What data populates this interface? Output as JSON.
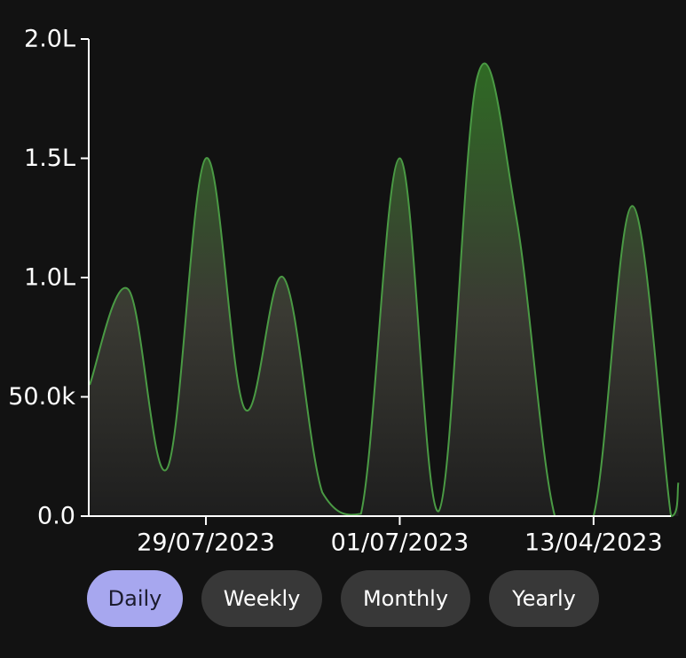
{
  "chart_data": {
    "type": "area",
    "y_ticks": [
      "0.0",
      "50.0k",
      "1.0L",
      "1.5L",
      "2.0L"
    ],
    "y_tick_values": [
      0,
      50000,
      100000,
      150000,
      200000
    ],
    "ylim": [
      0,
      200000
    ],
    "x_ticks": [
      {
        "label": "29/07/2023",
        "index": 4.8
      },
      {
        "label": "01/07/2023",
        "index": 12.8
      },
      {
        "label": "13/04/2023",
        "index": 20.8
      }
    ],
    "series": [
      {
        "values": [
          55000,
          95000,
          20000,
          150000,
          45000,
          100000,
          10000,
          1000,
          150000,
          2000,
          184000,
          126000,
          0,
          0,
          130000,
          0,
          14000
        ],
        "x_index": [
          0,
          1.6,
          3.2,
          4.8,
          6.4,
          8.0,
          9.6,
          11.2,
          12.8,
          14.4,
          16.0,
          17.6,
          19.2,
          20.8,
          22.4,
          24.0,
          24.3
        ]
      }
    ],
    "colors": {
      "line": "#4a9a44",
      "fill_top": "#2f6a24",
      "fill_bottom": "#1e1e1e",
      "axis": "#ffffff"
    },
    "grid": false,
    "title": "",
    "xlabel": "",
    "ylabel": ""
  },
  "filters": {
    "items": [
      {
        "label": "Daily",
        "active": true
      },
      {
        "label": "Weekly",
        "active": false
      },
      {
        "label": "Monthly",
        "active": false
      },
      {
        "label": "Yearly",
        "active": false
      }
    ]
  }
}
